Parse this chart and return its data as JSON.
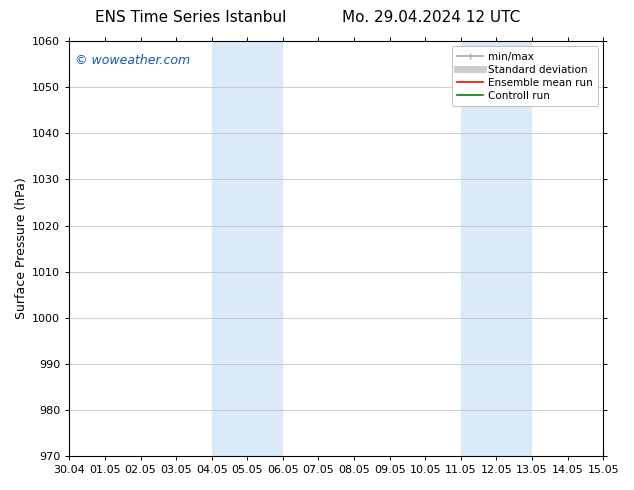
{
  "title_left": "ENS Time Series Istanbul",
  "title_right": "Mo. 29.04.2024 12 UTC",
  "ylabel": "Surface Pressure (hPa)",
  "ylim": [
    970,
    1060
  ],
  "yticks": [
    970,
    980,
    990,
    1000,
    1010,
    1020,
    1030,
    1040,
    1050,
    1060
  ],
  "xtick_labels": [
    "30.04",
    "01.05",
    "02.05",
    "03.05",
    "04.05",
    "05.05",
    "06.05",
    "07.05",
    "08.05",
    "09.05",
    "10.05",
    "11.05",
    "12.05",
    "13.05",
    "14.05",
    "15.05"
  ],
  "xtick_positions": [
    0,
    1,
    2,
    3,
    4,
    5,
    6,
    7,
    8,
    9,
    10,
    11,
    12,
    13,
    14,
    15
  ],
  "shaded_regions": [
    {
      "x_start": 4,
      "x_end": 6
    },
    {
      "x_start": 11,
      "x_end": 13
    }
  ],
  "shaded_color": "#daeaf8",
  "watermark_text": "© woweather.com",
  "watermark_color": "#1155cc",
  "watermark_fontsize": 9,
  "legend_entries": [
    {
      "label": "min/max",
      "color": "#aaaaaa",
      "lw": 1.2
    },
    {
      "label": "Standard deviation",
      "color": "#cccccc",
      "lw": 5
    },
    {
      "label": "Ensemble mean run",
      "color": "red",
      "lw": 1.2
    },
    {
      "label": "Controll run",
      "color": "green",
      "lw": 1.2
    }
  ],
  "bg_color": "#ffffff",
  "plot_bg_color": "#ffffff",
  "grid_color": "#bbbbbb",
  "title_fontsize": 11,
  "ylabel_fontsize": 9,
  "tick_fontsize": 8,
  "legend_fontsize": 7.5,
  "fig_width": 6.34,
  "fig_height": 4.9,
  "dpi": 100
}
